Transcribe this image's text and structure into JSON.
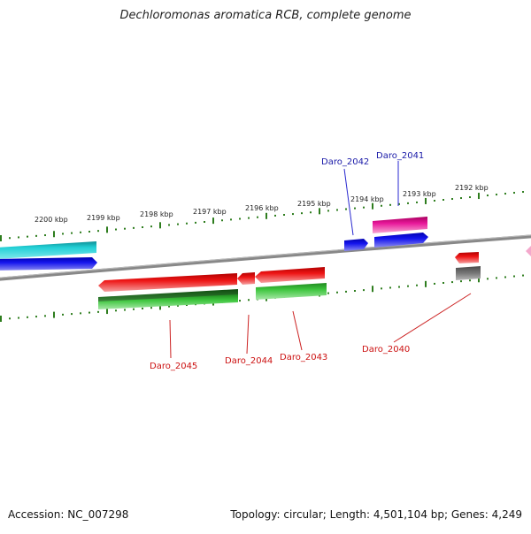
{
  "title": "Dechloromonas aromatica RCB, complete genome",
  "footer": {
    "accession": "Accession: NC_007298",
    "summary": "Topology: circular; Length: 4,501,104 bp; Genes: 4,249"
  },
  "scale_labels": [
    "2200 kbp",
    "2199 kbp",
    "2198 kbp",
    "2197 kbp",
    "2196 kbp",
    "2195 kbp",
    "2194 kbp",
    "2193 kbp",
    "2192 kbp"
  ],
  "gene_labels": {
    "daro_2042": "Daro_2042",
    "daro_2041": "Daro_2041",
    "daro_2045": "Daro_2045",
    "daro_2044": "Daro_2044",
    "daro_2043": "Daro_2043",
    "daro_2040": "Daro_2040"
  },
  "colors": {
    "label_forward": "#1a1aa8",
    "label_reverse": "#cc1111",
    "tick": "#2e7d1e",
    "backbone": "#808080",
    "cyan": "#19c1c8",
    "blue": "#1010e0",
    "red": "#e01010",
    "green": "#33bb33",
    "dark_green": "#2f7a2f",
    "magenta": "#e0188c",
    "gray": "#707070",
    "pink": "#f5a0c8"
  }
}
